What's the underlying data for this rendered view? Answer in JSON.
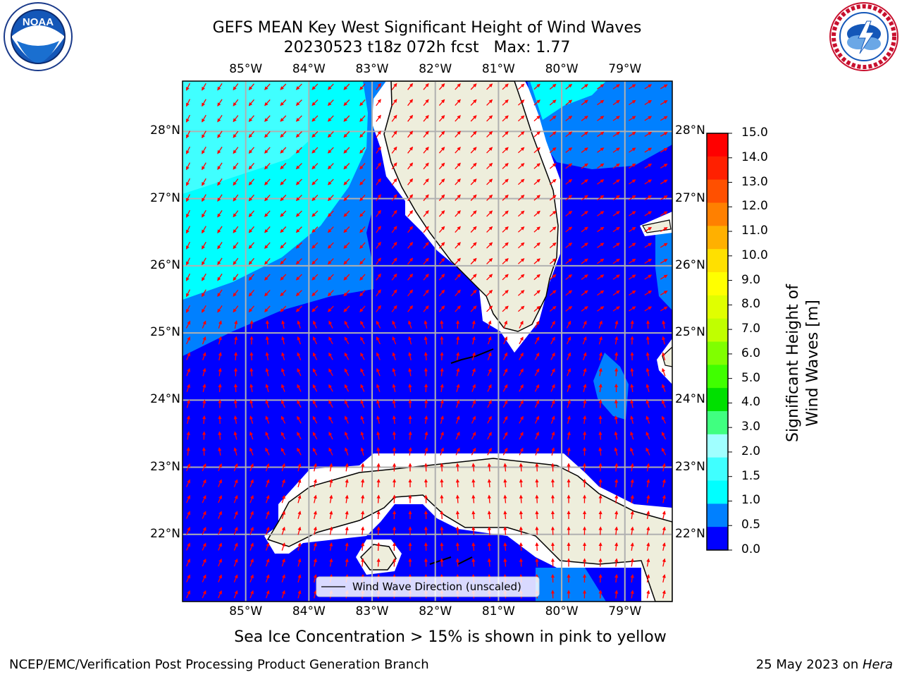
{
  "title": {
    "line1": "GEFS MEAN Key West Significant Height of Wind Waves",
    "line2": "20230523 t18z 072h fcst   Max: 1.77"
  },
  "logos": {
    "noaa": {
      "text": "NOAA",
      "ring_text": "NATIONAL OCEANIC AND ATMOSPHERIC ADMINISTRATION · U.S. DEPARTMENT OF COMMERCE"
    },
    "nws": {
      "ring_text": "NATIONAL WEATHER SERVICE"
    }
  },
  "map": {
    "lon_labels": [
      "85°W",
      "84°W",
      "83°W",
      "82°W",
      "81°W",
      "80°W",
      "79°W"
    ],
    "lat_labels": [
      "28°N",
      "27°N",
      "26°N",
      "25°N",
      "24°N",
      "23°N",
      "22°N"
    ],
    "lon_values": [
      -85,
      -84,
      -83,
      -82,
      -81,
      -80,
      -79
    ],
    "lat_values": [
      28,
      27,
      26,
      25,
      24,
      23,
      22
    ],
    "extent": {
      "lon_min": -86.0,
      "lon_max": -78.25,
      "lat_min": 21.0,
      "lat_max": 28.75
    },
    "colors": {
      "land": "#eeeedc",
      "grid": "#b0b0b0",
      "arrow": "#ff0000",
      "band_0_0_5": "#0000ff",
      "band_0_5_1_0": "#0080ff",
      "band_1_0_1_5": "#00ffff",
      "band_1_5_2_0": "#40ffff"
    },
    "legend_label": "Wind Wave Direction (unscaled)"
  },
  "colorbar": {
    "label": "Significant Height of Wind Waves [m]",
    "tick_labels": [
      "15.0",
      "14.0",
      "13.0",
      "12.0",
      "11.0",
      "10.0",
      "9.0",
      "8.0",
      "7.0",
      "6.0",
      "5.0",
      "4.0",
      "3.0",
      "2.0",
      "1.5",
      "1.0",
      "0.5",
      "0.0"
    ],
    "colors": [
      "#ff0000",
      "#ff2000",
      "#ff5000",
      "#ff8000",
      "#ffb000",
      "#ffe000",
      "#ffff00",
      "#e0ff00",
      "#c0ff00",
      "#80ff00",
      "#40ff00",
      "#00e000",
      "#40ff80",
      "#a0ffff",
      "#40ffff",
      "#00ffff",
      "#0080ff",
      "#0000ff"
    ]
  },
  "caption": "Sea Ice Concentration > 15% is shown in pink to yellow",
  "footer": {
    "left": "NCEP/EMC/Verification Post Processing Product Generation Branch",
    "right_prefix": "25 May 2023 on ",
    "right_host": "Hera"
  }
}
